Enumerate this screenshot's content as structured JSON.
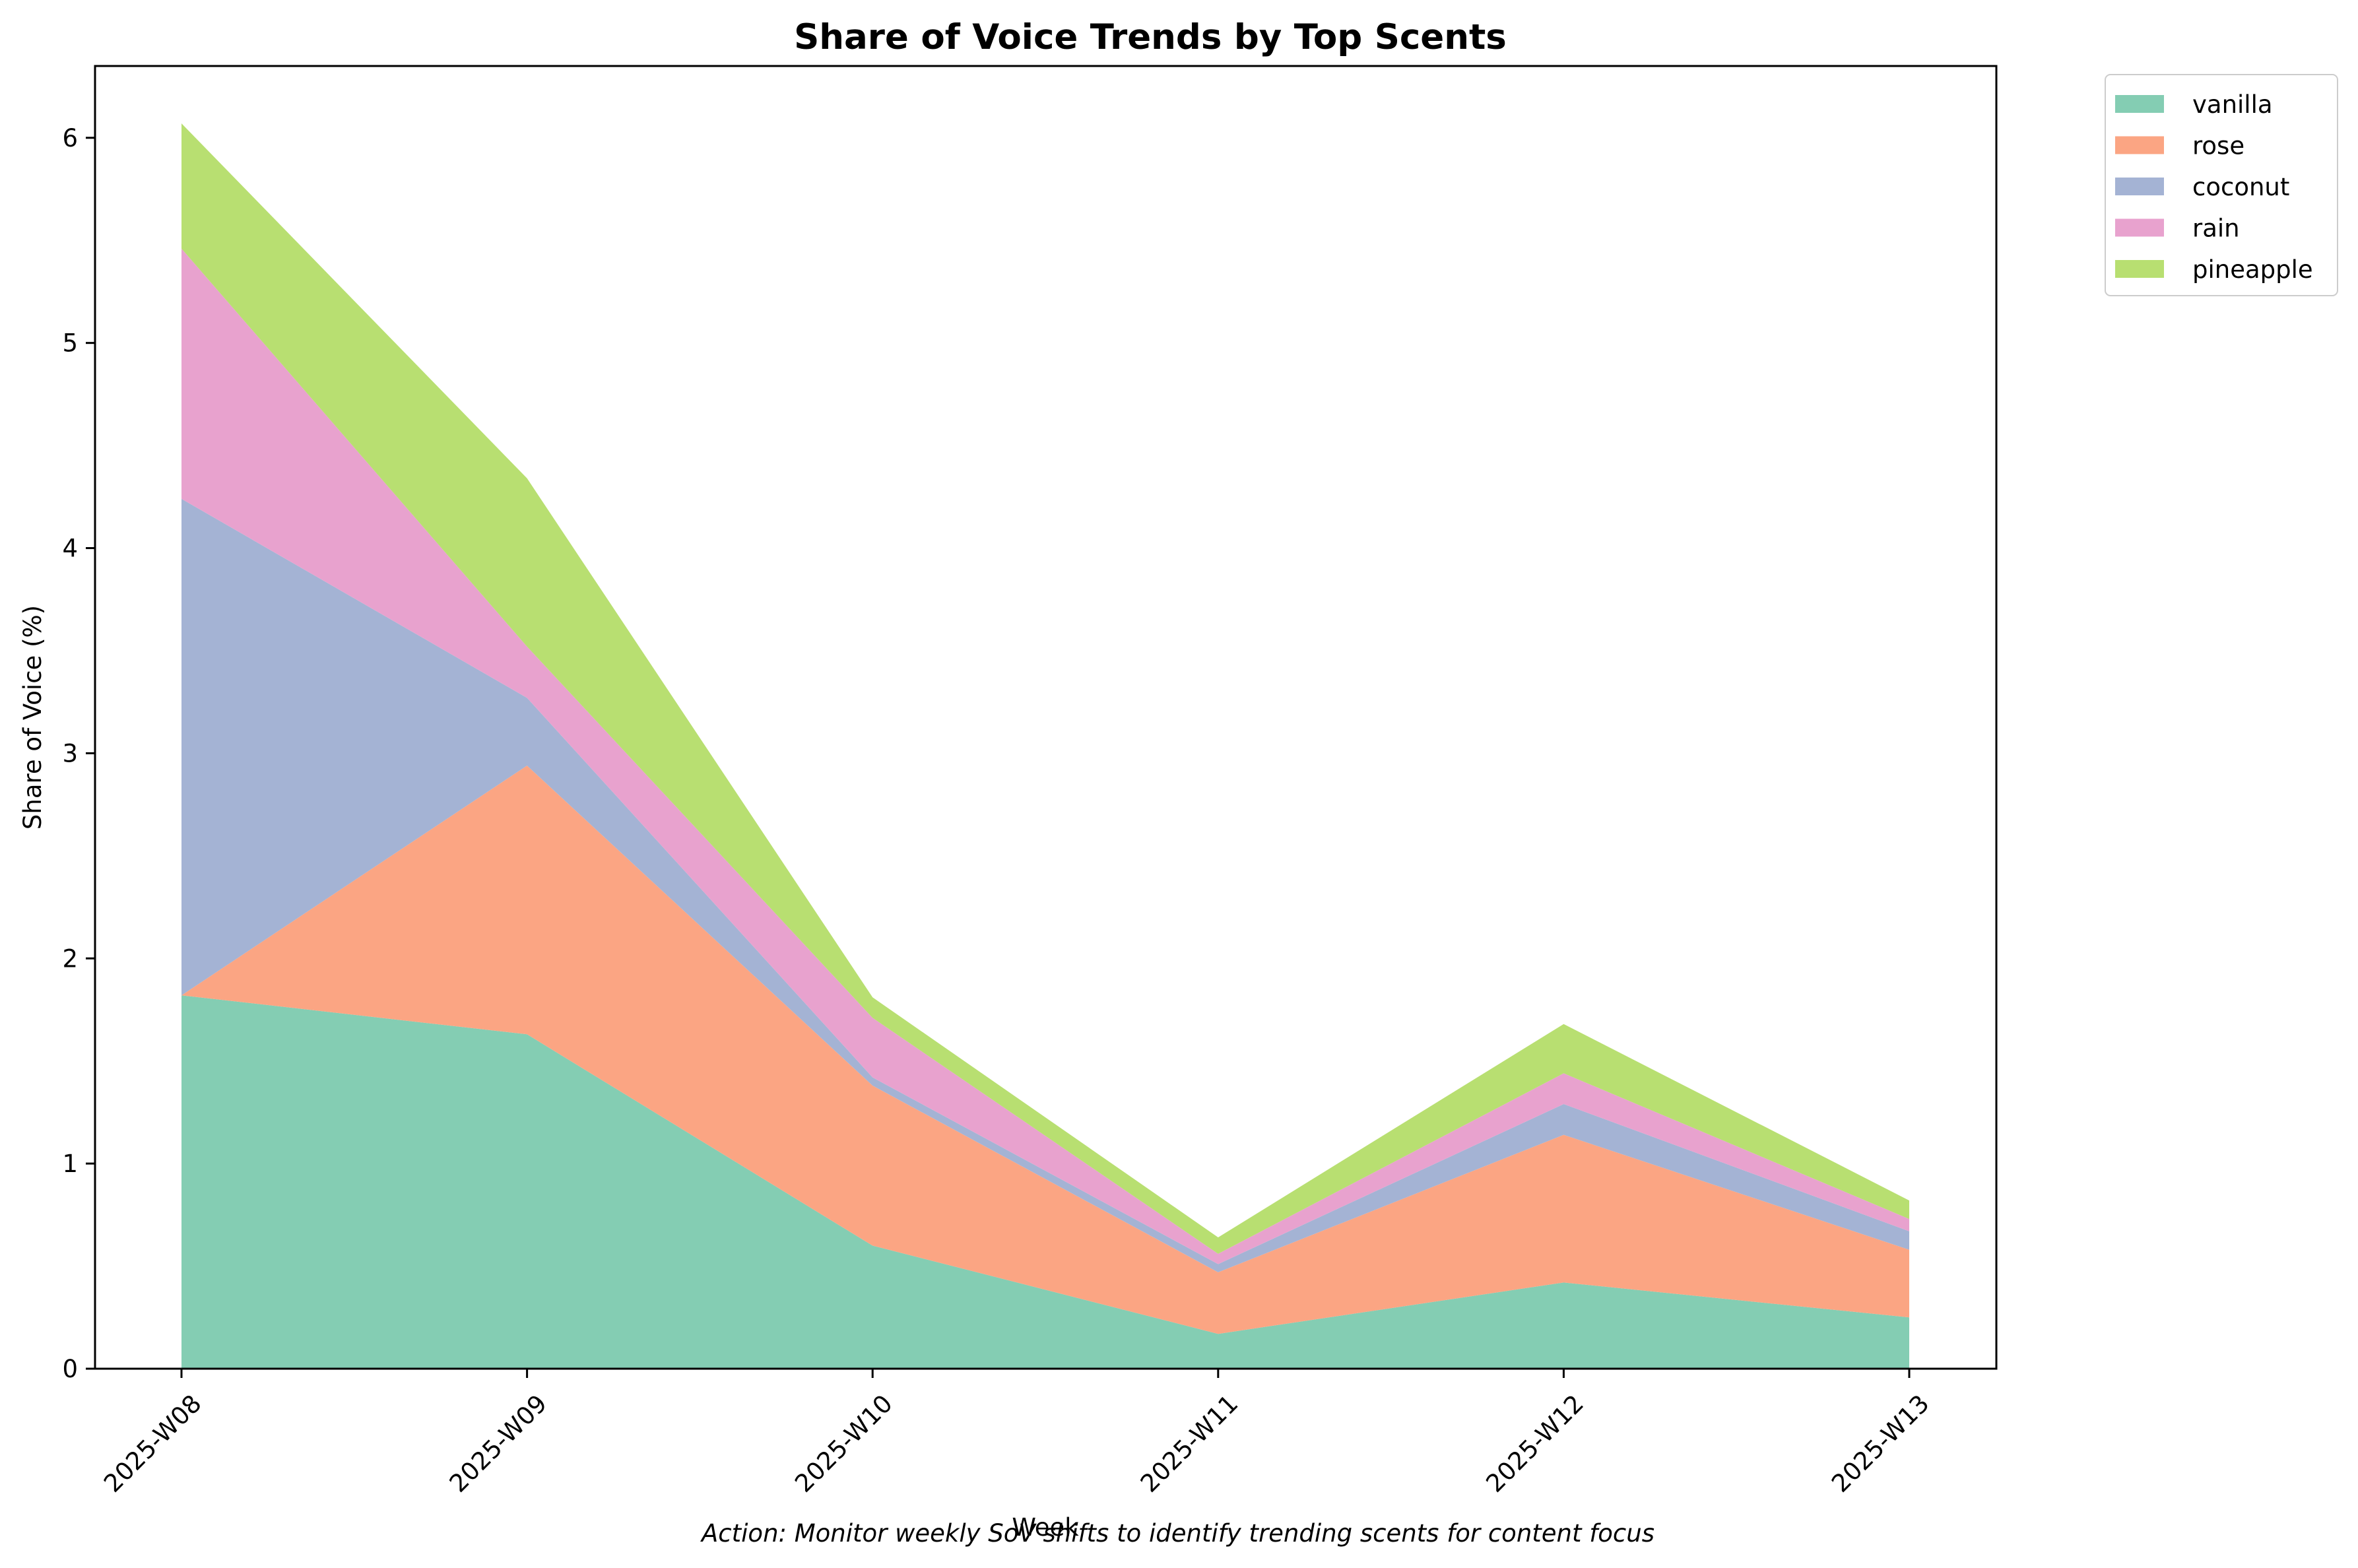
{
  "chart_data": {
    "type": "area",
    "stacked": true,
    "title": "Share of Voice Trends by Top Scents",
    "xlabel": "Week",
    "ylabel": "Share of Voice (%)",
    "ylim": [
      0,
      6.35
    ],
    "yticks": [
      0,
      1,
      2,
      3,
      4,
      5,
      6
    ],
    "categories": [
      "2025-W08",
      "2025-W09",
      "2025-W10",
      "2025-W11",
      "2025-W12",
      "2025-W13"
    ],
    "series": [
      {
        "name": "vanilla",
        "color": "#84cdb3",
        "values": [
          1.82,
          1.63,
          0.6,
          0.17,
          0.42,
          0.25
        ]
      },
      {
        "name": "rose",
        "color": "#fba583",
        "values": [
          0.0,
          1.31,
          0.78,
          0.3,
          0.72,
          0.33
        ]
      },
      {
        "name": "coconut",
        "color": "#a4b3d4",
        "values": [
          2.42,
          0.33,
          0.04,
          0.04,
          0.15,
          0.09
        ]
      },
      {
        "name": "rain",
        "color": "#e8a2ce",
        "values": [
          1.22,
          0.25,
          0.29,
          0.05,
          0.15,
          0.06
        ]
      },
      {
        "name": "pineapple",
        "color": "#b8df71",
        "values": [
          0.61,
          0.82,
          0.1,
          0.08,
          0.24,
          0.09
        ]
      }
    ],
    "legend_position": "upper-right-outside",
    "grid": false,
    "footnote": "Action: Monitor weekly SoV shifts to identify trending scents for content focus"
  }
}
